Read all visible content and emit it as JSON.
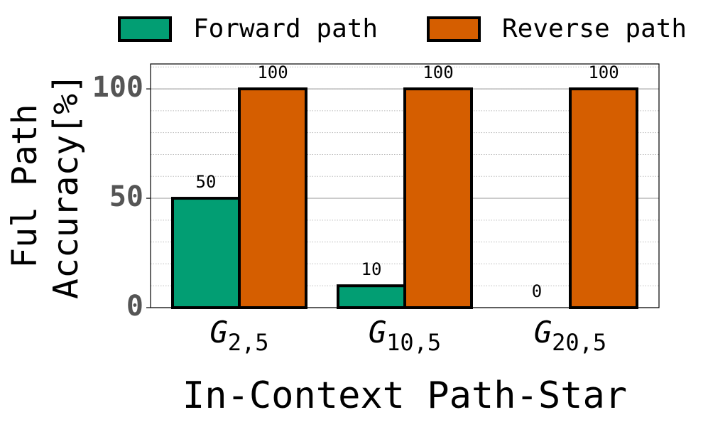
{
  "chart_data": {
    "type": "bar",
    "y_label": [
      "Ful Path",
      "Accuracy[%]"
    ],
    "x_label": "In-Context Path-Star",
    "categories": [
      {
        "text": "G",
        "subscript": "2,5"
      },
      {
        "text": "G",
        "subscript": "10,5"
      },
      {
        "text": "G",
        "subscript": "20,5"
      }
    ],
    "series": [
      {
        "name": "Forward path",
        "color": "#029e73",
        "values": [
          50,
          10,
          0
        ]
      },
      {
        "name": "Reverse path",
        "color": "#d55e00",
        "values": [
          100,
          100,
          100
        ]
      }
    ],
    "ylim": [
      0,
      111.4
    ],
    "yticks": [
      0,
      50,
      100
    ],
    "minor_grid_step": 10,
    "grid": true,
    "legend": "top"
  }
}
